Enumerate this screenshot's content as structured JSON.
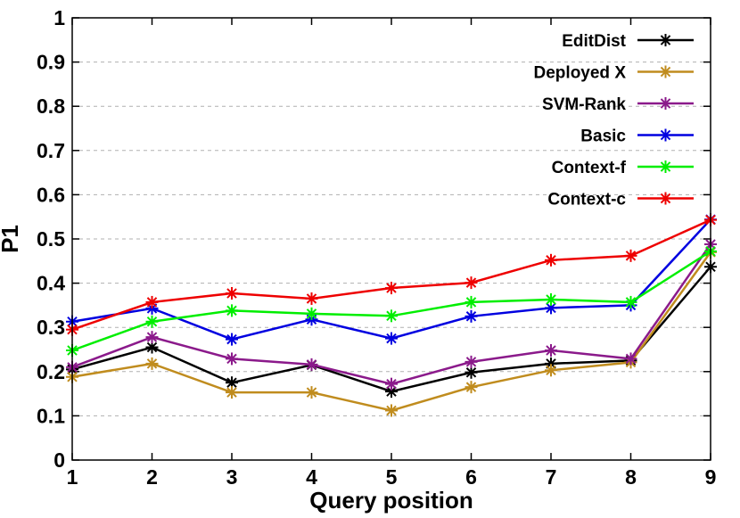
{
  "chart_data": {
    "type": "line",
    "title": "",
    "xlabel": "Query position",
    "ylabel": "P1",
    "x": [
      1,
      2,
      3,
      4,
      5,
      6,
      7,
      8,
      9
    ],
    "xlim": [
      1,
      9
    ],
    "ylim": [
      0,
      1
    ],
    "x_ticks": [
      "1",
      "2",
      "3",
      "4",
      "5",
      "6",
      "7",
      "8",
      "9"
    ],
    "y_ticks": [
      "0",
      "0.1",
      "0.2",
      "0.3",
      "0.4",
      "0.5",
      "0.6",
      "0.7",
      "0.8",
      "0.9",
      "1"
    ],
    "grid": "horizontal dashed",
    "legend_position": "top-right",
    "marker": "asterisk",
    "series": [
      {
        "name": "EditDist",
        "color": "#000000",
        "values": [
          0.205,
          0.255,
          0.175,
          0.215,
          0.155,
          0.198,
          0.218,
          0.225,
          0.437
        ]
      },
      {
        "name": "Deployed X",
        "color": "#c08c1e",
        "values": [
          0.188,
          0.218,
          0.153,
          0.153,
          0.112,
          0.165,
          0.203,
          0.221,
          0.47
        ]
      },
      {
        "name": "SVM-Rank",
        "color": "#8b1a8b",
        "values": [
          0.21,
          0.278,
          0.229,
          0.216,
          0.172,
          0.222,
          0.248,
          0.229,
          0.488
        ]
      },
      {
        "name": "Basic",
        "color": "#0000e0",
        "values": [
          0.313,
          0.343,
          0.273,
          0.318,
          0.275,
          0.325,
          0.344,
          0.35,
          0.544
        ]
      },
      {
        "name": "Context-f",
        "color": "#00ee00",
        "values": [
          0.248,
          0.313,
          0.338,
          0.331,
          0.326,
          0.357,
          0.363,
          0.357,
          0.472
        ]
      },
      {
        "name": "Context-c",
        "color": "#ee0000",
        "values": [
          0.295,
          0.357,
          0.377,
          0.365,
          0.389,
          0.401,
          0.452,
          0.462,
          0.543
        ]
      }
    ]
  }
}
